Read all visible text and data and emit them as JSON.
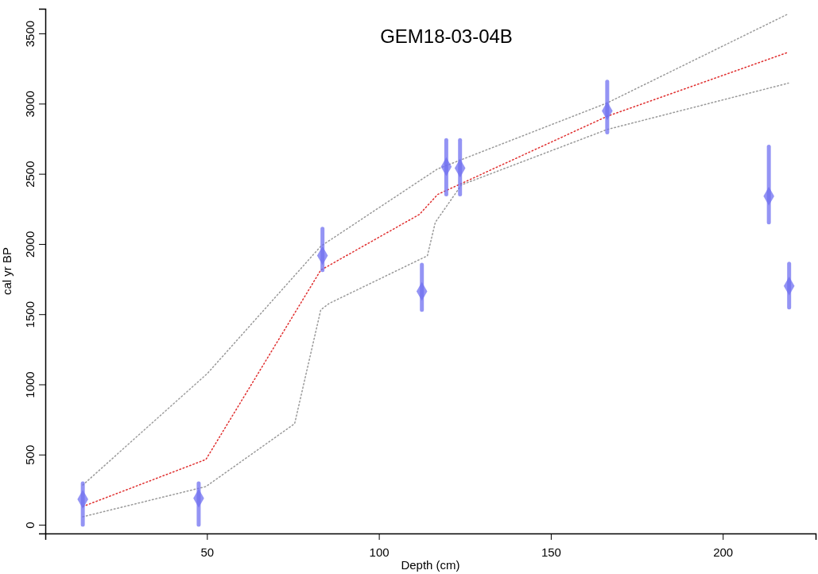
{
  "chart_data": {
    "type": "scatter",
    "title": "GEM18-03-04B",
    "xlabel": "Depth (cm)",
    "ylabel": "cal yr BP",
    "xlim": [
      3,
      227
    ],
    "ylim": [
      -62,
      3676
    ],
    "xticks": [
      50,
      100,
      150,
      200
    ],
    "yticks": [
      0,
      500,
      1000,
      1500,
      2000,
      2500,
      3000,
      3500
    ],
    "series": [
      {
        "type": "line",
        "color": "#999999",
        "line_style": "dotted",
        "marker": "none",
        "x": [
          13.9,
          50.1,
          83.1,
          117,
          166.3,
          219
        ],
        "values": [
          283,
          1077,
          1984,
          2534,
          3004,
          3639
        ]
      },
      {
        "type": "line",
        "color": "#999999",
        "line_style": "dotted",
        "marker": "none",
        "x": [
          13.9,
          49.7,
          75.5,
          83.1,
          85.5,
          114.1,
          116.4,
          124,
          166.4,
          219.1
        ],
        "values": [
          57,
          272,
          720,
          1531,
          1576,
          1916,
          2154,
          2421,
          2816,
          3146
        ]
      },
      {
        "type": "line",
        "color": "#e03030",
        "line_style": "dotted",
        "marker": "none",
        "x": [
          13.9,
          49.7,
          83.1,
          111.8,
          117.1,
          166.4,
          218.7
        ],
        "values": [
          130,
          465,
          1814,
          2211,
          2353,
          2910,
          3363
        ]
      },
      {
        "color": "#7070f0",
        "marker": "diamond",
        "x": [
          13.9,
          47.6,
          83.6,
          112.5,
          119.6,
          123.6,
          166.4,
          213.4,
          219.3
        ],
        "values": [
          181,
          189,
          1918,
          1663,
          2551,
          2540,
          2948,
          2341,
          1701
        ],
        "errors": [
          [
            0,
            295
          ],
          [
            0,
            295
          ],
          [
            1814,
            2108
          ],
          [
            1531,
            1852
          ],
          [
            2353,
            2740
          ],
          [
            2353,
            2740
          ],
          [
            2795,
            3156
          ],
          [
            2154,
            2693
          ],
          [
            1548,
            1859
          ]
        ]
      }
    ]
  }
}
